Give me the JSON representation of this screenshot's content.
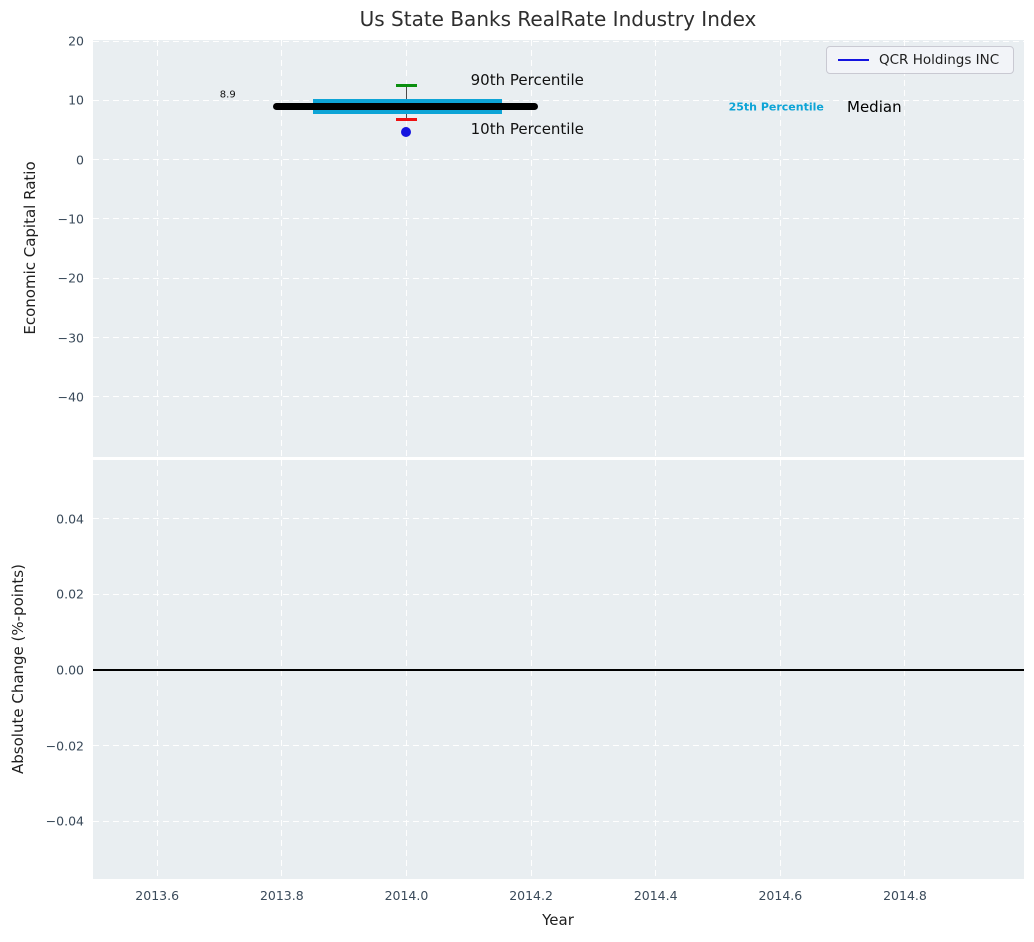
{
  "colors": {
    "axes_background": "#e9eef1",
    "grid": "#ffffff",
    "tick_label": "#3a4a5a",
    "cyan": "#0da4d6",
    "blue": "#1414e0",
    "green": "#0a8f0f",
    "red": "#ef1010",
    "black": "#000000"
  },
  "chart_data": [
    {
      "type": "line",
      "title": "Us State Banks RealRate Industry Index",
      "ylabel": "Economic Capital Ratio",
      "xlim": [
        2013.497,
        2014.991
      ],
      "ylim": [
        -50.15,
        20.17
      ],
      "grid": "white dashed, on",
      "xticks": [
        {
          "v": 2013.6,
          "label": "2013.6"
        },
        {
          "v": 2013.8,
          "label": "2013.8"
        },
        {
          "v": 2014.0,
          "label": "2014.0"
        },
        {
          "v": 2014.2,
          "label": "2014.2"
        },
        {
          "v": 2014.4,
          "label": "2014.4"
        },
        {
          "v": 2014.6,
          "label": "2014.6"
        },
        {
          "v": 2014.8,
          "label": "2014.8"
        }
      ],
      "yticks": [
        {
          "v": 20,
          "label": "20"
        },
        {
          "v": 10,
          "label": "10"
        },
        {
          "v": 0,
          "label": "0"
        },
        {
          "v": -10,
          "label": "−10"
        },
        {
          "v": -20,
          "label": "−20"
        },
        {
          "v": -30,
          "label": "−30"
        },
        {
          "v": -40,
          "label": "−40"
        }
      ],
      "series": [
        {
          "name": "percentile-25-band",
          "label": "25th Percentile",
          "x": [
            2013.85,
            2014.153
          ],
          "y": 8.9,
          "lw": 15,
          "color": "#0da4d6",
          "round_cap": false
        },
        {
          "name": "median",
          "label": "Median",
          "x": [
            2013.792,
            2014.206
          ],
          "y": 8.9,
          "lw": 7,
          "color": "#000000",
          "round_cap": true
        }
      ],
      "errorbar": {
        "x": 2014.0,
        "high": 12.5,
        "low": 6.7,
        "high_label": "90th Percentile",
        "low_label": "10th Percentile",
        "high_color": "#0a8f0f",
        "low_color": "#ef1010",
        "cap_width": 21
      },
      "point": {
        "name": "QCR Holdings INC",
        "x": 2014.0,
        "y": 4.7,
        "color": "#1414e0",
        "size": 10
      },
      "annotations": [
        {
          "name": "start-value",
          "text": "8.9",
          "x": 2013.726,
          "y": 10.9,
          "ha": "right",
          "size": 10,
          "bold": false,
          "color": "#111111"
        },
        {
          "name": "90th-percentile-label",
          "text": "90th Percentile",
          "x": 2014.103,
          "y": 13.5,
          "ha": "left",
          "size": 15,
          "bold": false,
          "color": "#111111"
        },
        {
          "name": "10th-percentile-label",
          "text": "10th Percentile",
          "x": 2014.103,
          "y": 5.1,
          "ha": "left",
          "size": 15,
          "bold": false,
          "color": "#111111"
        },
        {
          "name": "25th-percentile-label",
          "text": "25th Percentile",
          "x": 2014.517,
          "y": 8.9,
          "ha": "left",
          "size": 11,
          "bold": true,
          "color": "#0da4d6"
        },
        {
          "name": "median-label",
          "text": "Median",
          "x": 2014.707,
          "y": 8.9,
          "ha": "left",
          "size": 15,
          "bold": false,
          "color": "#000000"
        }
      ],
      "legend": {
        "label": "QCR Holdings INC",
        "line_color": "#1414e0",
        "position": "upper right"
      }
    },
    {
      "type": "line",
      "ylabel": "Absolute Change (%-points)",
      "xlabel": "Year",
      "xlim": [
        2013.497,
        2014.991
      ],
      "ylim": [
        -0.0552,
        0.05545
      ],
      "grid": "white dashed, on",
      "xticks": [
        {
          "v": 2013.6,
          "label": "2013.6"
        },
        {
          "v": 2013.8,
          "label": "2013.8"
        },
        {
          "v": 2014.0,
          "label": "2014.0"
        },
        {
          "v": 2014.2,
          "label": "2014.2"
        },
        {
          "v": 2014.4,
          "label": "2014.4"
        },
        {
          "v": 2014.6,
          "label": "2014.6"
        },
        {
          "v": 2014.8,
          "label": "2014.8"
        }
      ],
      "yticks": [
        {
          "v": 0.04,
          "label": "0.04"
        },
        {
          "v": 0.02,
          "label": "0.02"
        },
        {
          "v": 0.0,
          "label": "0.00"
        },
        {
          "v": -0.02,
          "label": "−0.02"
        },
        {
          "v": -0.04,
          "label": "−0.04"
        }
      ],
      "zero_line": {
        "y": 0.0,
        "color": "#000000",
        "lw": 2
      }
    }
  ]
}
